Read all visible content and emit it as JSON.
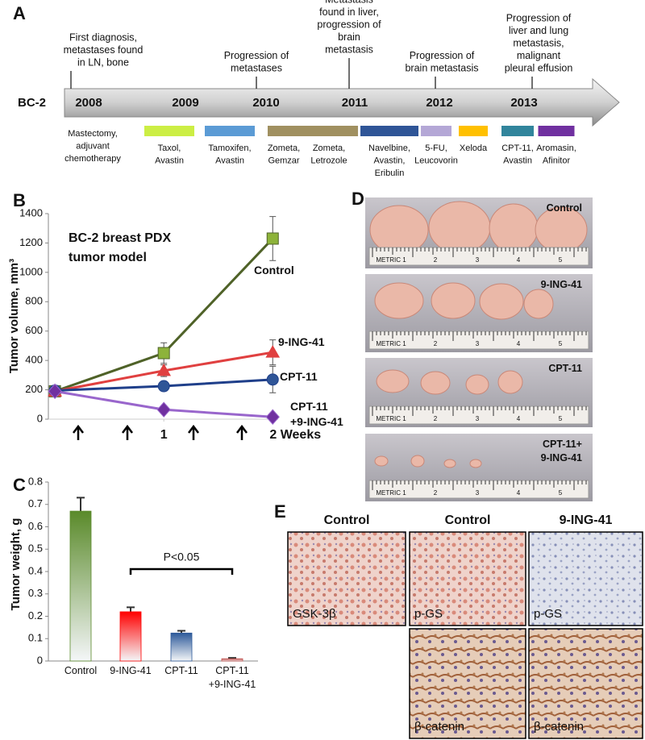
{
  "panel_letters": [
    "A",
    "B",
    "C",
    "D",
    "E"
  ],
  "timeline": {
    "label": "BC-2",
    "years": [
      2008,
      2009,
      2010,
      2011,
      2012,
      2013
    ],
    "events": [
      {
        "lines": [
          "First diagnosis,",
          "metastases found",
          "in LN, bone"
        ]
      },
      {
        "lines": [
          "Progression of",
          "metastases"
        ]
      },
      {
        "lines": [
          "Metastasis",
          "found in liver,",
          "progression of",
          "brain",
          "metastasis"
        ]
      },
      {
        "lines": [
          "Progression of",
          "brain metastasis"
        ]
      },
      {
        "lines": [
          "Progression of",
          "liver and lung",
          "metastasis,",
          "malignant",
          "pleural effusion"
        ]
      }
    ],
    "treatments": [
      {
        "lines": [
          "Mastectomy,",
          "adjuvant",
          "chemotherapy"
        ]
      },
      {
        "lines": [
          "Taxol,",
          "Avastin"
        ],
        "color": "#ccee44"
      },
      {
        "lines": [
          "Tamoxifen,",
          "Avastin"
        ],
        "color": "#5b9bd5"
      },
      {
        "lines": [
          "Zometa,",
          "Gemzar"
        ],
        "color": "#a09060"
      },
      {
        "lines": [
          "Zometa,",
          "Letrozole"
        ],
        "color": "#a09060"
      },
      {
        "lines": [
          "Navelbine,",
          "Avastin,",
          "Eribulin"
        ],
        "color": "#2f5597"
      },
      {
        "lines": [
          "5-FU,",
          "Leucovorin"
        ],
        "color": "#b4a7d6"
      },
      {
        "lines": [
          "Xeloda"
        ],
        "color": "#ffc000"
      },
      {
        "lines": [
          "CPT-11,",
          "Avastin"
        ],
        "color": "#31859c"
      },
      {
        "lines": [
          "Aromasin,",
          "Afinitor"
        ],
        "color": "#7030a0"
      }
    ]
  },
  "chart_data": [
    {
      "type": "line",
      "annotation": [
        "BC-2 breast PDX",
        "tumor model"
      ],
      "y_label": "Tumor volume, mm³",
      "x": [
        0,
        1,
        2
      ],
      "xlim": [
        -0.06,
        2.05
      ],
      "xticks": [
        1,
        {
          "value": 2,
          "label": "2 Weeks"
        }
      ],
      "ylim": [
        0,
        1400
      ],
      "yticks": [
        0,
        200,
        400,
        600,
        800,
        1000,
        1200,
        1400
      ],
      "grid": false,
      "series": [
        {
          "name": "Control",
          "color": "#4f6228",
          "fill": "#8db33a",
          "marker": "square",
          "values": [
            190,
            450,
            1230
          ],
          "errors": [
            25,
            70,
            150
          ]
        },
        {
          "name": "9-ING-41",
          "color": "#e04040",
          "fill": "#e04040",
          "marker": "triangle",
          "values": [
            190,
            330,
            455
          ],
          "errors": [
            20,
            40,
            85
          ]
        },
        {
          "name": "CPT-11",
          "color": "#1f3f8a",
          "fill": "#2f5597",
          "marker": "circle",
          "values": [
            195,
            225,
            270
          ],
          "errors": [
            15,
            20,
            90
          ]
        },
        {
          "name": "CPT-11 +9-ING-41",
          "color": "#9966cc",
          "fill": "#7030a0",
          "marker": "diamond",
          "values": [
            190,
            65,
            15
          ],
          "errors": [
            20,
            15,
            10
          ]
        }
      ]
    },
    {
      "type": "bar",
      "y_label": "Tumor weight, g",
      "annotation": "P<0.05",
      "categories": [
        "Control",
        "9-ING-41",
        "CPT-11",
        "CPT-11 +9-ING-41"
      ],
      "values": [
        0.67,
        0.22,
        0.125,
        0.01
      ],
      "errors": [
        0.06,
        0.02,
        0.01,
        0.004
      ],
      "colors": [
        "#5a8a2a",
        "#ff0000",
        "#2e5a9a",
        "#c0504d"
      ],
      "ylim": [
        0,
        0.8
      ],
      "yticks": [
        0,
        0.1,
        0.2,
        0.3,
        0.4,
        0.5,
        0.6,
        0.7,
        0.8
      ],
      "grid": false
    }
  ],
  "photos": {
    "groups": [
      "Control",
      "9-ING-41",
      "CPT-11",
      "CPT-11+ 9-ING-41"
    ],
    "ruler_labels": [
      "METRIC 1",
      "2",
      "3",
      "4",
      "5"
    ]
  },
  "ihc": {
    "headers": [
      "Control",
      "Control",
      "9-ING-41"
    ],
    "stains": [
      "GSK-3β",
      "p-GS",
      "p-GS",
      "β-catenin",
      "β-catenin"
    ]
  }
}
